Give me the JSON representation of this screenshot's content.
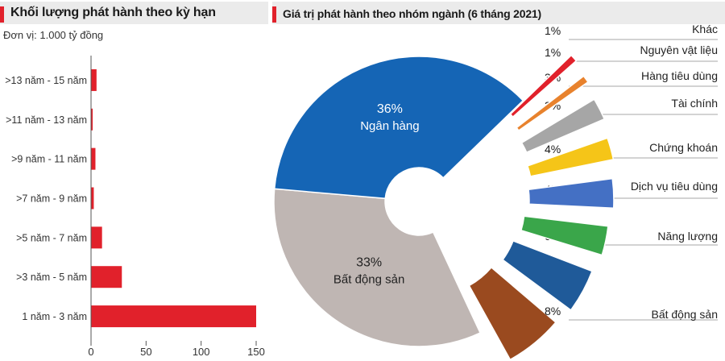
{
  "colors": {
    "accent": "#e1212b",
    "header_bg": "#ebebeb"
  },
  "left_chart": {
    "title": "Khối lượng phát hành theo kỳ hạn",
    "unit": "Đơn vị: 1.000 tỷ đồng"
  },
  "right_chart": {
    "title": "Giá trị phát hành theo nhóm ngành (6 tháng 2021)"
  },
  "chart_data": [
    {
      "type": "bar",
      "orientation": "horizontal",
      "title": "Khối lượng phát hành theo kỳ hạn",
      "unit": "Đơn vị: 1.000 tỷ đồng",
      "categories": [
        ">13 năm - 15 năm",
        ">11 năm - 13 năm",
        ">9 năm - 11 năm",
        ">7 năm - 9 năm",
        ">5 năm - 7 năm",
        ">3 năm - 5 năm",
        "1 năm - 3 năm"
      ],
      "values": [
        5,
        1.5,
        4,
        2.5,
        10,
        28,
        150
      ],
      "xlim": [
        0,
        150
      ],
      "xticks": [
        0,
        50,
        100,
        150
      ],
      "bar_color": "#e1212b",
      "grid": false
    },
    {
      "type": "pie",
      "style": "donut with exploded slices",
      "title": "Giá trị phát hành theo nhóm ngành (6 tháng 2021)",
      "slices": [
        {
          "label": "Ngân hàng",
          "value": 36,
          "value_label": "36%",
          "color": "#1565b5",
          "inside": true
        },
        {
          "label": "Bất động sản",
          "value": 33,
          "value_label": "33%",
          "color": "#bfb6b3",
          "inside": true
        },
        {
          "label": "Bất động sản",
          "value": 8,
          "value_label": "8%",
          "color": "#9a4a1f"
        },
        {
          "label": "Năng lượng",
          "value": 6,
          "value_label": "6%",
          "color": "#1f5a99"
        },
        {
          "label": "Dịch vụ tiêu dùng",
          "value": 4,
          "value_label": "4%",
          "color": "#3aa64a"
        },
        {
          "label": "Chứng khoán",
          "value": 4,
          "value_label": "4%",
          "color": "#4470c4"
        },
        {
          "label": "Tài chính",
          "value": 3,
          "value_label": "3%",
          "color": "#f5c518"
        },
        {
          "label": "Hàng tiêu dùng",
          "value": 3,
          "value_label": "3%",
          "color": "#a6a6a6"
        },
        {
          "label": "Nguyên vật liệu",
          "value": 1,
          "value_label": "1%",
          "color": "#e8822d"
        },
        {
          "label": "Khác",
          "value": 1,
          "value_label": "1%",
          "color": "#e1212b"
        }
      ]
    }
  ]
}
